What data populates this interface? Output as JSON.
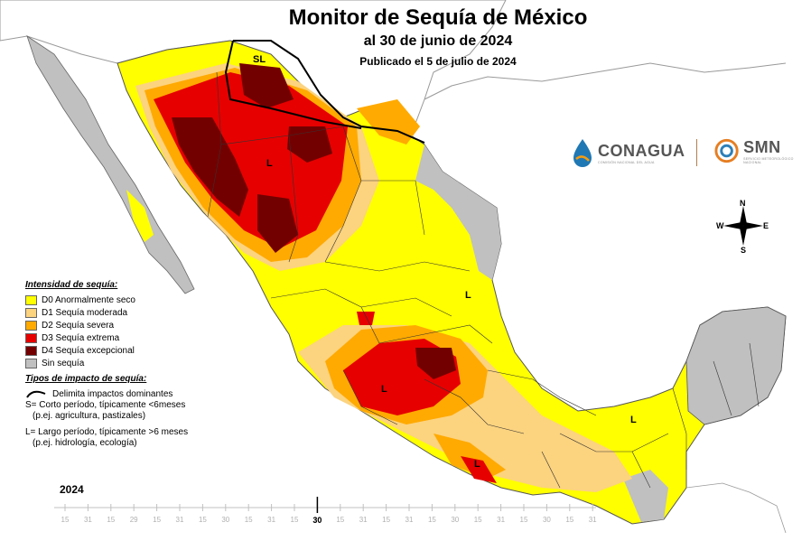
{
  "title": "Monitor de Sequía de México",
  "date_line": "al 30 de junio de 2024",
  "published": "Publicado el 5 de julio de 2024",
  "legend": {
    "heading": "Intensidad de sequía:",
    "items": [
      {
        "label": "D0 Anormalmente seco",
        "color": "#ffff00"
      },
      {
        "label": "D1 Sequía moderada",
        "color": "#fcd37f"
      },
      {
        "label": "D2 Sequía severa",
        "color": "#ffaa00"
      },
      {
        "label": "D3 Sequía extrema",
        "color": "#e60000"
      },
      {
        "label": "D4 Sequía excepcional",
        "color": "#730000"
      },
      {
        "label": "Sin sequía",
        "color": "#c0c0c0"
      }
    ],
    "impacts_heading": "Tipos de impacto de sequía:",
    "impact_line": "Delimita impactos dominantes",
    "s_line": "S= Corto período, típicamente <6meses",
    "s_example": "(p.ej. agricultura, pastizales)",
    "l_line": "L= Largo período, típicamente >6 meses",
    "l_example": "(p.ej. hidrología, ecología)"
  },
  "logos": {
    "conagua": "CONAGUA",
    "conagua_sub": "COMISIÓN NACIONAL DEL AGUA",
    "smn": "SMN",
    "smn_sub": "SERVICIO METEOROLÓGICO NACIONAL"
  },
  "compass": {
    "n": "N",
    "s": "S",
    "e": "E",
    "w": "W"
  },
  "zone_labels": {
    "sl": "SL",
    "l": "L"
  },
  "timeline": {
    "year": "2024",
    "ticks": [
      "15",
      "31",
      "15",
      "29",
      "15",
      "31",
      "15",
      "30",
      "15",
      "31",
      "15",
      "30",
      "15",
      "31",
      "15",
      "31",
      "15",
      "30",
      "15",
      "31",
      "15",
      "30",
      "15",
      "31"
    ],
    "current": "30",
    "current_index": 11
  }
}
